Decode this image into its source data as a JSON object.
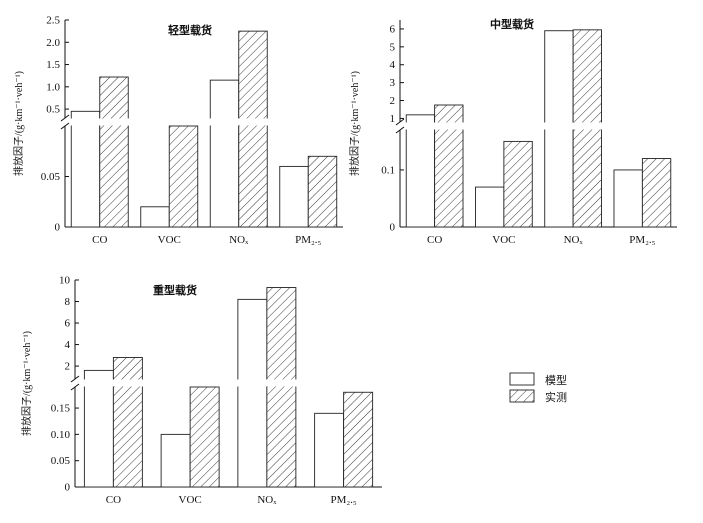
{
  "chart_data": [
    {
      "type": "bar",
      "title": "轻型载货",
      "ylabel": "排放因子/(g·km⁻¹·veh⁻¹)",
      "categories": [
        "CO",
        "VOC",
        "NOₓ",
        "PM₂.₅"
      ],
      "axis_break": true,
      "lower_range": [
        0,
        0.1
      ],
      "lower_ticks": [
        "0",
        "0.05"
      ],
      "upper_range": [
        0.3,
        2.5
      ],
      "upper_ticks": [
        "0.5",
        "1.0",
        "1.5",
        "2.0",
        "2.5"
      ],
      "series": [
        {
          "name": "模型",
          "values": [
            0.45,
            0.02,
            1.15,
            0.06
          ]
        },
        {
          "name": "实测",
          "values": [
            1.22,
            0.13,
            2.25,
            0.07
          ]
        }
      ]
    },
    {
      "type": "bar",
      "title": "中型载货",
      "ylabel": "排放因子/(g·km⁻¹·veh⁻¹)",
      "categories": [
        "CO",
        "VOC",
        "NOₓ",
        "PM₂.₅"
      ],
      "axis_break": true,
      "lower_range": [
        0,
        0.17
      ],
      "lower_ticks": [
        "0",
        "0.1"
      ],
      "upper_range": [
        0.8,
        6.5
      ],
      "upper_ticks": [
        "1",
        "2",
        "3",
        "4",
        "5",
        "6"
      ],
      "series": [
        {
          "name": "模型",
          "values": [
            1.2,
            0.07,
            5.9,
            0.1
          ]
        },
        {
          "name": "实测",
          "values": [
            1.75,
            0.15,
            5.95,
            0.12
          ]
        }
      ]
    },
    {
      "type": "bar",
      "title": "重型载货",
      "ylabel": "排放因子/(g·km⁻¹·veh⁻¹)",
      "categories": [
        "CO",
        "VOC",
        "NOₓ",
        "PM₂.₅"
      ],
      "axis_break": true,
      "lower_range": [
        0,
        0.19
      ],
      "lower_ticks": [
        "0",
        "0.05",
        "0.10",
        "0.15"
      ],
      "upper_range": [
        0.8,
        10
      ],
      "upper_ticks": [
        "2",
        "4",
        "6",
        "8",
        "10"
      ],
      "series": [
        {
          "name": "模型",
          "values": [
            1.6,
            0.1,
            8.2,
            0.14
          ]
        },
        {
          "name": "实测",
          "values": [
            2.8,
            0.19,
            9.3,
            0.18
          ]
        }
      ]
    }
  ],
  "legend": {
    "items": [
      {
        "label": "模型",
        "pattern": "open"
      },
      {
        "label": "实测",
        "pattern": "hatch"
      }
    ],
    "placement": "right-middle"
  }
}
